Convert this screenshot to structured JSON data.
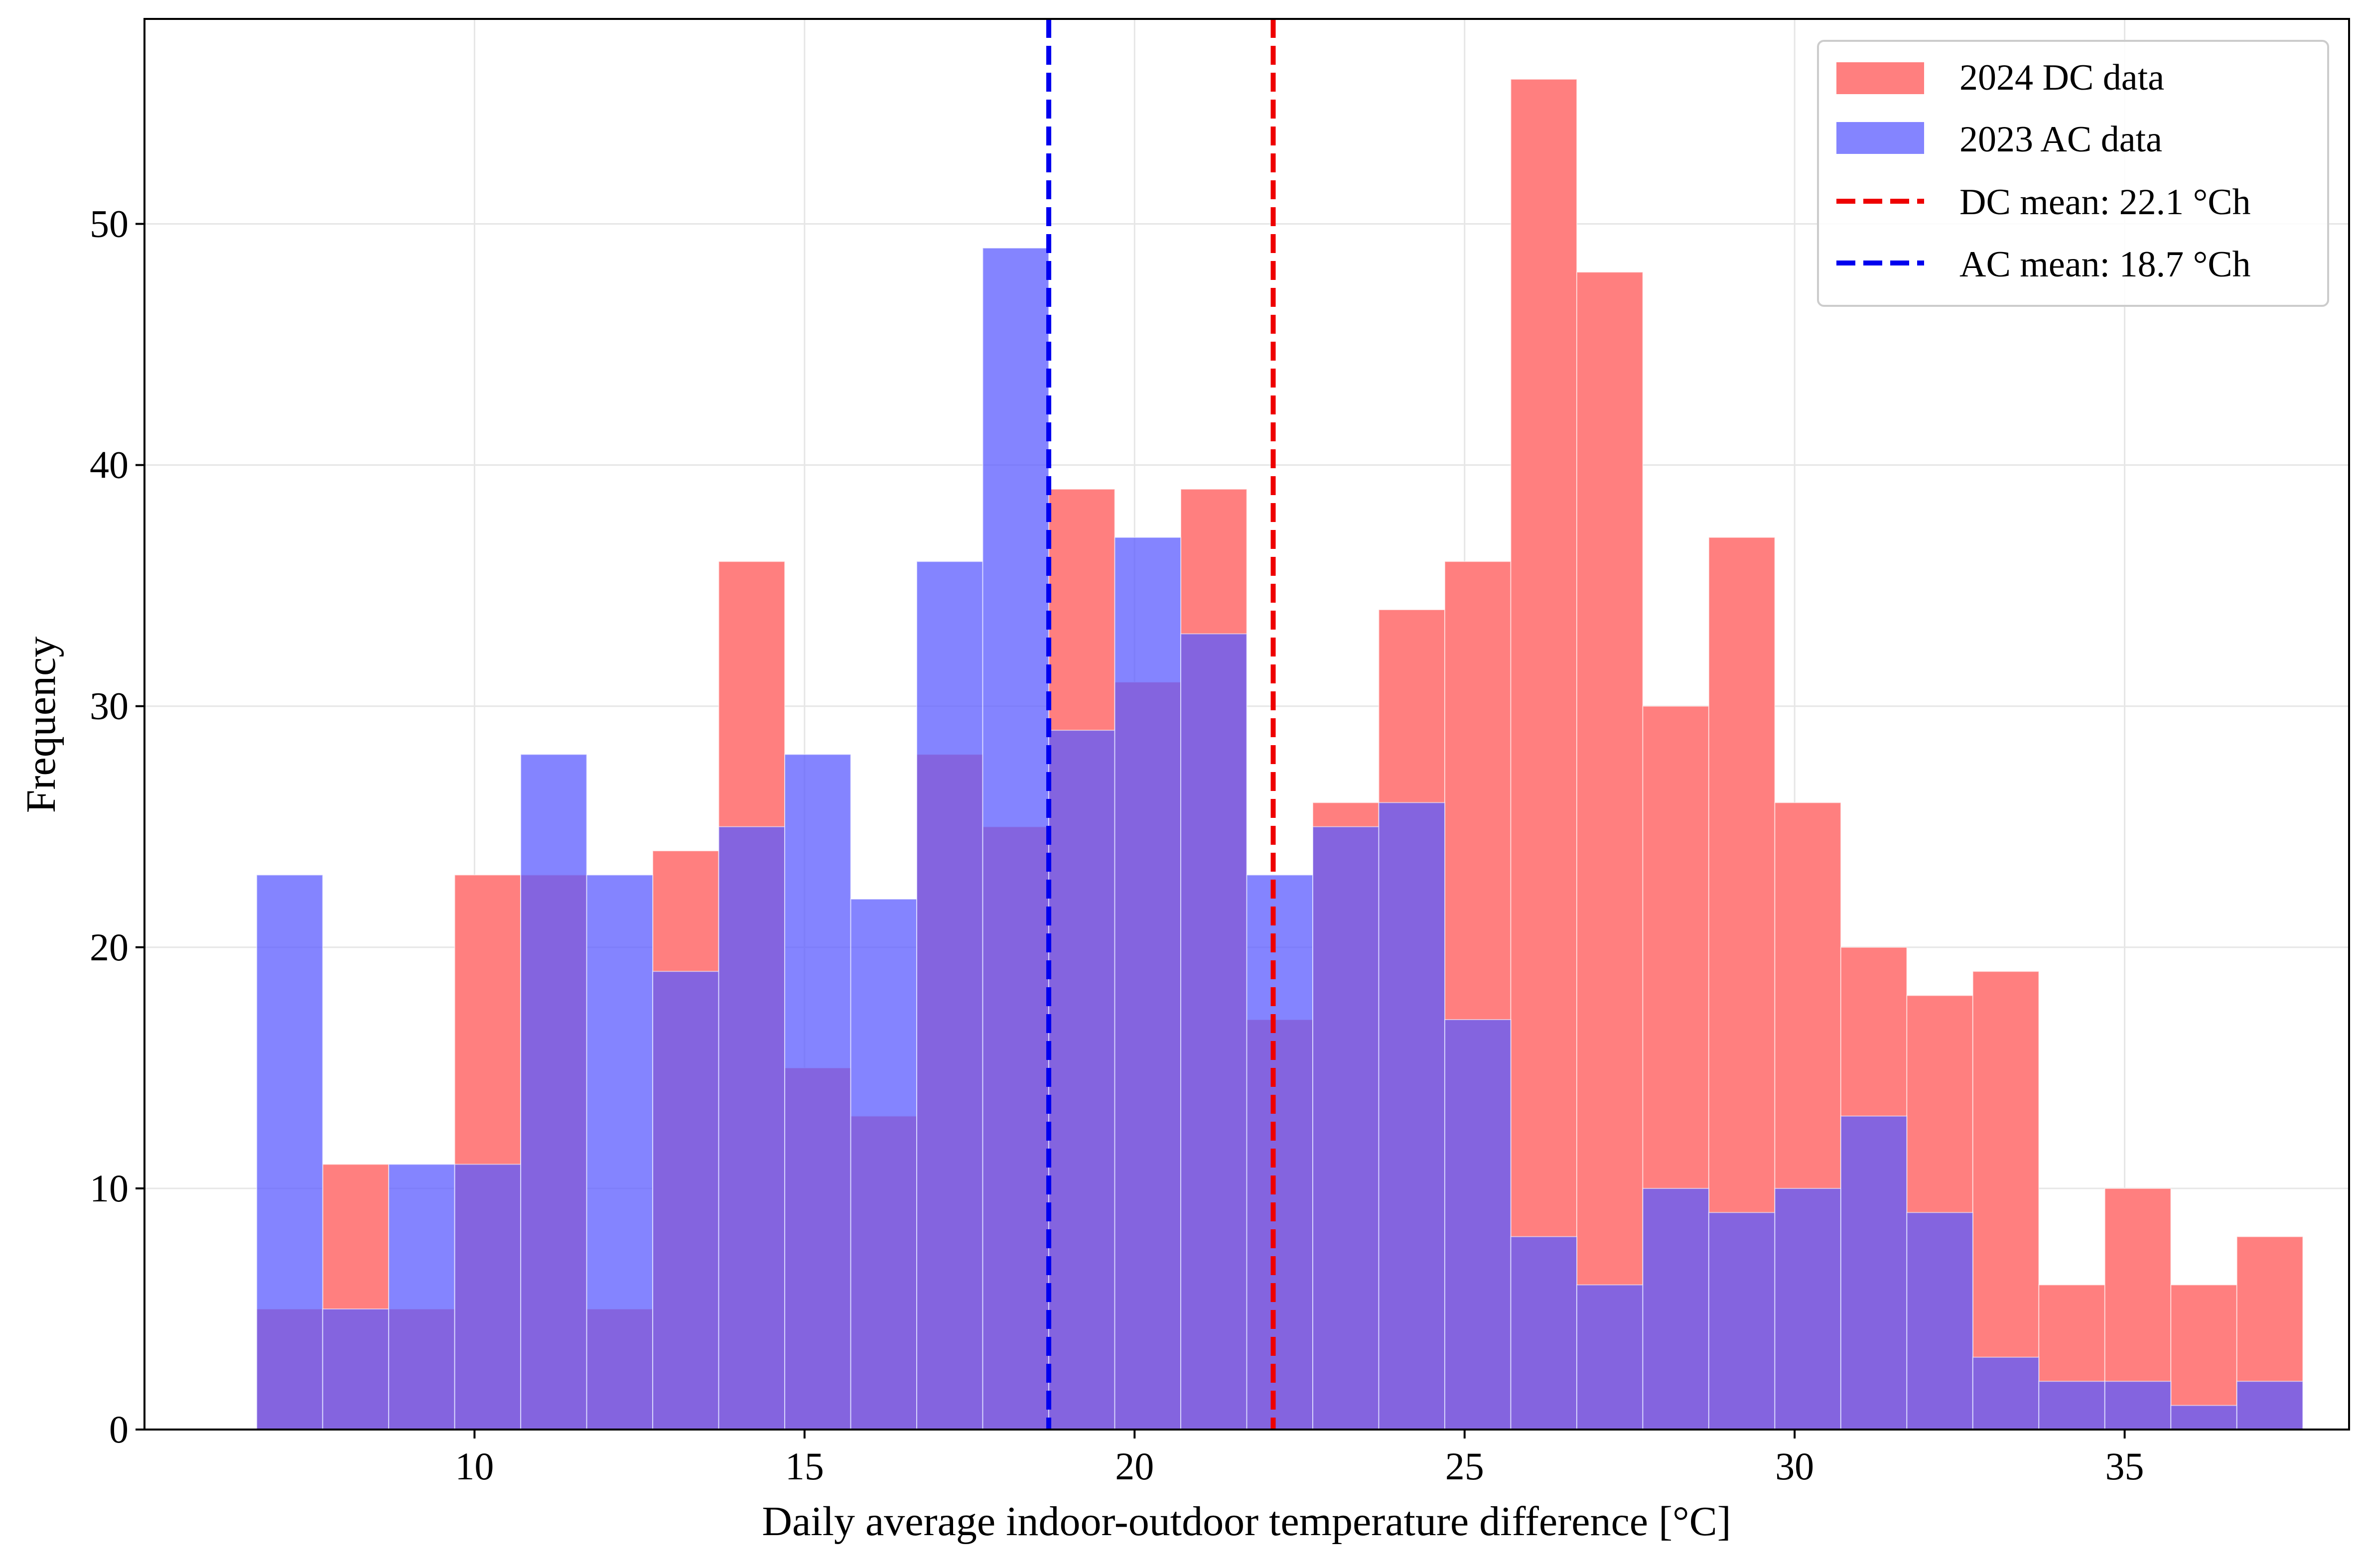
{
  "chart_data": {
    "type": "bar",
    "subtype": "overlapping-histogram",
    "title": "",
    "xlabel": "Daily average indoor-outdoor temperature difference [°C]",
    "ylabel": "Frequency",
    "xlim": [
      5.0,
      38.4
    ],
    "ylim": [
      0,
      58.5
    ],
    "x_ticks": [
      10,
      15,
      20,
      25,
      30,
      35
    ],
    "y_ticks": [
      0,
      10,
      20,
      30,
      40,
      50
    ],
    "grid": true,
    "legend_position": "top-right",
    "series": [
      {
        "name": "2024 DC data",
        "color": "#ff7f7f",
        "opacity": 1.0,
        "bin_start": 6.7,
        "bin_width": 1.0,
        "values": [
          5,
          11,
          5,
          23,
          23,
          5,
          24,
          36,
          15,
          13,
          28,
          25,
          39,
          31,
          39,
          17,
          26,
          34,
          36,
          56,
          48,
          30,
          37,
          26,
          20,
          18,
          19,
          6,
          10,
          6,
          8
        ]
      },
      {
        "name": "2023 AC data",
        "color": "#5b5bff",
        "opacity": 0.75,
        "bin_start": 6.7,
        "bin_width": 1.0,
        "values": [
          23,
          5,
          11,
          11,
          28,
          23,
          19,
          25,
          28,
          22,
          36,
          49,
          29,
          37,
          33,
          23,
          25,
          26,
          17,
          8,
          6,
          10,
          9,
          10,
          13,
          9,
          3,
          2,
          2,
          1,
          2
        ]
      }
    ],
    "reference_lines": [
      {
        "name": "DC mean: 22.1 °Ch",
        "x": 22.1,
        "color": "#ee0000",
        "style": "dashed"
      },
      {
        "name": "AC mean: 18.7 °Ch",
        "x": 18.7,
        "color": "#0000ee",
        "style": "dashed"
      }
    ]
  }
}
